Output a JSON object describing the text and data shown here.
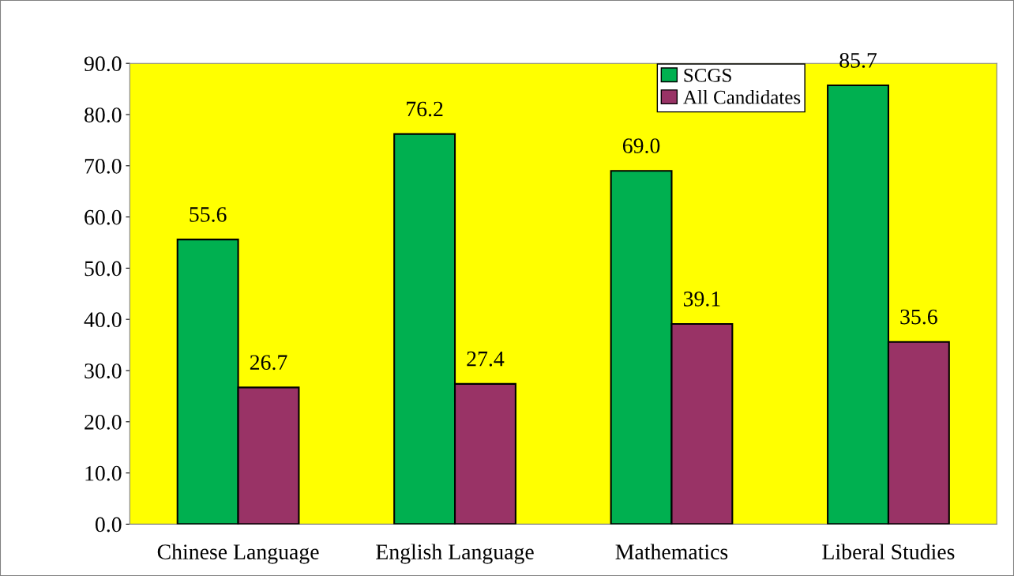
{
  "chart_data": {
    "type": "bar",
    "categories": [
      "Chinese Language",
      "English Language",
      "Mathematics",
      "Liberal Studies"
    ],
    "series": [
      {
        "name": "SCGS",
        "color": "#00b050",
        "values": [
          55.6,
          76.2,
          69.0,
          85.7
        ]
      },
      {
        "name": "All Candidates",
        "color": "#993366",
        "values": [
          26.7,
          27.4,
          39.1,
          35.6
        ]
      }
    ],
    "value_labels": [
      [
        "55.6",
        "76.2",
        "69.0",
        "85.7"
      ],
      [
        "26.7",
        "27.4",
        "39.1",
        "35.6"
      ]
    ],
    "ylim": [
      0,
      90
    ],
    "yticks": [
      {
        "value": 0,
        "label": "0.0"
      },
      {
        "value": 10,
        "label": "10.0"
      },
      {
        "value": 20,
        "label": "20.0"
      },
      {
        "value": 30,
        "label": "30.0"
      },
      {
        "value": 40,
        "label": "40.0"
      },
      {
        "value": 50,
        "label": "50.0"
      },
      {
        "value": 60,
        "label": "60.0"
      },
      {
        "value": 70,
        "label": "70.0"
      },
      {
        "value": 80,
        "label": "80.0"
      },
      {
        "value": 90,
        "label": "90.0"
      }
    ],
    "legend": "top right",
    "grid": false
  }
}
